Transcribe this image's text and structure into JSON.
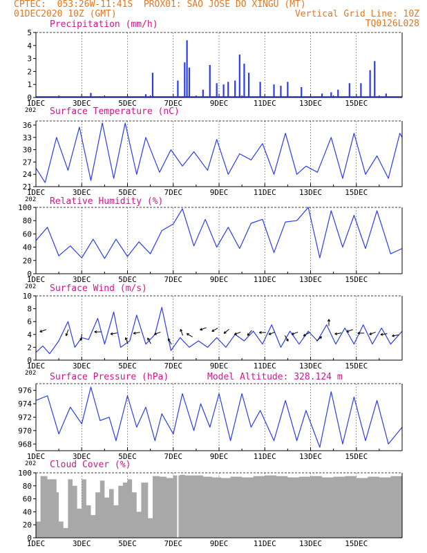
{
  "header": {
    "line1_left": "CPTEC:  053:26W-11:41S  PROX01: SAO JOSE DO XINGU (MT)",
    "line2_left": "01DEC2020 10Z (GMT)",
    "line2_right": "Vertical Grid Line: 10Z",
    "line3_right": "TQ0126L028"
  },
  "colors": {
    "header": "#e8761c",
    "title": "#d4148a",
    "line": "#2a3cf0",
    "bar": "#2a3cf0",
    "cloud": "#a8a8a8",
    "axis": "#000000"
  },
  "x_ticks": [
    "1DEC",
    "3DEC",
    "5DEC",
    "7DEC",
    "9DEC",
    "11DEC",
    "13DEC",
    "15DEC"
  ],
  "x_sublabel": "202",
  "chart_data": [
    {
      "type": "bar",
      "title": "Precipitation (mm/h)",
      "ylim": [
        0,
        5
      ],
      "yticks": [
        "0",
        "1",
        "2",
        "3",
        "4",
        "5"
      ],
      "series": [
        {
          "values": [
            [
              2.4,
              0.35
            ],
            [
              4.0,
              0.1
            ],
            [
              4.8,
              0.25
            ],
            [
              5.1,
              1.9
            ],
            [
              6.2,
              1.3
            ],
            [
              6.5,
              2.7
            ],
            [
              6.6,
              4.4
            ],
            [
              6.7,
              2.3
            ],
            [
              7.3,
              0.6
            ],
            [
              7.6,
              2.5
            ],
            [
              7.9,
              1.1
            ],
            [
              8.2,
              1.0
            ],
            [
              8.4,
              1.2
            ],
            [
              8.7,
              1.3
            ],
            [
              8.9,
              3.3
            ],
            [
              9.1,
              2.6
            ],
            [
              9.3,
              1.9
            ],
            [
              9.8,
              1.2
            ],
            [
              10.4,
              1.0
            ],
            [
              10.7,
              0.9
            ],
            [
              11.0,
              1.2
            ],
            [
              11.6,
              0.8
            ],
            [
              12.5,
              0.3
            ],
            [
              12.9,
              0.4
            ],
            [
              13.2,
              0.6
            ],
            [
              13.7,
              1.1
            ],
            [
              14.2,
              1.1
            ],
            [
              14.6,
              2.1
            ],
            [
              14.8,
              2.8
            ],
            [
              15.3,
              0.3
            ]
          ]
        }
      ]
    },
    {
      "type": "line",
      "title": "Surface Temperature (nC)",
      "ylim": [
        21,
        37
      ],
      "yticks": [
        "21",
        "24",
        "27",
        "30",
        "33",
        "36"
      ],
      "series": [
        {
          "values": [
            [
              0.0,
              25.5
            ],
            [
              0.4,
              22
            ],
            [
              0.9,
              33
            ],
            [
              1.4,
              25
            ],
            [
              1.9,
              35.5
            ],
            [
              2.4,
              22.5
            ],
            [
              2.9,
              36.5
            ],
            [
              3.4,
              23
            ],
            [
              3.9,
              36.5
            ],
            [
              4.4,
              24
            ],
            [
              4.8,
              33
            ],
            [
              5.4,
              24.5
            ],
            [
              5.9,
              30
            ],
            [
              6.4,
              26
            ],
            [
              6.9,
              29.5
            ],
            [
              7.5,
              25
            ],
            [
              7.9,
              32.5
            ],
            [
              8.4,
              24
            ],
            [
              8.9,
              29
            ],
            [
              9.4,
              27.5
            ],
            [
              9.9,
              31.5
            ],
            [
              10.4,
              24
            ],
            [
              10.9,
              34
            ],
            [
              11.4,
              24
            ],
            [
              11.8,
              26
            ],
            [
              12.3,
              24.5
            ],
            [
              12.9,
              33
            ],
            [
              13.4,
              23
            ],
            [
              13.9,
              34
            ],
            [
              14.4,
              24
            ],
            [
              14.9,
              28.5
            ],
            [
              15.4,
              23
            ],
            [
              15.9,
              34
            ],
            [
              16.0,
              33
            ]
          ]
        }
      ]
    },
    {
      "type": "line",
      "title": "Relative Humidity (%)",
      "ylim": [
        0,
        100
      ],
      "yticks": [
        "0",
        "20",
        "40",
        "60",
        "80",
        "100"
      ],
      "series": [
        {
          "values": [
            [
              0.0,
              50
            ],
            [
              0.5,
              70
            ],
            [
              1.0,
              27
            ],
            [
              1.5,
              42
            ],
            [
              2.0,
              24
            ],
            [
              2.5,
              52
            ],
            [
              3.0,
              23
            ],
            [
              3.5,
              52
            ],
            [
              4.0,
              26
            ],
            [
              4.5,
              48
            ],
            [
              5.0,
              30
            ],
            [
              5.5,
              65
            ],
            [
              6.0,
              75
            ],
            [
              6.4,
              98
            ],
            [
              6.9,
              42
            ],
            [
              7.4,
              82
            ],
            [
              7.9,
              40
            ],
            [
              8.4,
              70
            ],
            [
              8.9,
              38
            ],
            [
              9.4,
              76
            ],
            [
              9.9,
              82
            ],
            [
              10.4,
              32
            ],
            [
              10.9,
              78
            ],
            [
              11.4,
              80
            ],
            [
              11.9,
              100
            ],
            [
              12.4,
              24
            ],
            [
              12.9,
              95
            ],
            [
              13.4,
              40
            ],
            [
              13.9,
              88
            ],
            [
              14.4,
              38
            ],
            [
              14.9,
              95
            ],
            [
              15.5,
              30
            ],
            [
              16.0,
              38
            ]
          ]
        }
      ]
    },
    {
      "type": "line",
      "title": "Surface Wind (m/s)",
      "ylim": [
        0,
        10
      ],
      "yticks": [
        "0",
        "2",
        "4",
        "6",
        "8",
        "10"
      ],
      "series": [
        {
          "values": [
            [
              0.0,
              1.2
            ],
            [
              0.3,
              2.2
            ],
            [
              0.6,
              1.0
            ],
            [
              1.0,
              3.0
            ],
            [
              1.4,
              6.0
            ],
            [
              1.7,
              2.0
            ],
            [
              2.0,
              3.5
            ],
            [
              2.3,
              3.2
            ],
            [
              2.7,
              6.5
            ],
            [
              3.0,
              2.5
            ],
            [
              3.4,
              7.5
            ],
            [
              3.7,
              2.0
            ],
            [
              4.1,
              3.0
            ],
            [
              4.4,
              7.0
            ],
            [
              4.8,
              2.5
            ],
            [
              5.2,
              4.0
            ],
            [
              5.5,
              8.2
            ],
            [
              5.9,
              1.5
            ],
            [
              6.3,
              3.5
            ],
            [
              6.7,
              2.0
            ],
            [
              7.1,
              3.0
            ],
            [
              7.5,
              2.0
            ],
            [
              7.9,
              3.5
            ],
            [
              8.3,
              2.0
            ],
            [
              8.7,
              4.0
            ],
            [
              9.1,
              3.0
            ],
            [
              9.5,
              4.5
            ],
            [
              9.9,
              2.5
            ],
            [
              10.3,
              5.5
            ],
            [
              10.7,
              2.0
            ],
            [
              11.1,
              4.5
            ],
            [
              11.5,
              2.5
            ],
            [
              11.9,
              4.5
            ],
            [
              12.3,
              3.0
            ],
            [
              12.7,
              5.5
            ],
            [
              13.1,
              2.5
            ],
            [
              13.5,
              5.0
            ],
            [
              13.9,
              2.5
            ],
            [
              14.3,
              5.5
            ],
            [
              14.7,
              2.5
            ],
            [
              15.1,
              5.0
            ],
            [
              15.5,
              2.5
            ],
            [
              16.0,
              4.5
            ]
          ]
        }
      ],
      "arrows": [
        [
          0.4,
          4.7,
          200
        ],
        [
          1.4,
          4.6,
          250
        ],
        [
          2.0,
          3.9,
          260
        ],
        [
          2.8,
          4.4,
          180
        ],
        [
          3.5,
          4.2,
          190
        ],
        [
          4.0,
          2.7,
          110
        ],
        [
          4.5,
          4.3,
          190
        ],
        [
          5.0,
          2.7,
          120
        ],
        [
          5.4,
          4.3,
          200
        ],
        [
          5.9,
          2.6,
          120
        ],
        [
          6.4,
          4.0,
          110
        ],
        [
          6.8,
          3.7,
          150
        ],
        [
          7.4,
          5.0,
          200
        ],
        [
          7.9,
          4.9,
          210
        ],
        [
          8.4,
          4.7,
          220
        ],
        [
          8.9,
          4.3,
          200
        ],
        [
          9.4,
          4.5,
          230
        ],
        [
          10.0,
          4.3,
          180
        ],
        [
          10.4,
          4.3,
          200
        ],
        [
          10.9,
          3.7,
          300
        ],
        [
          11.4,
          4.3,
          200
        ],
        [
          11.9,
          4.2,
          210
        ],
        [
          12.3,
          3.1,
          40
        ],
        [
          12.8,
          5.5,
          90
        ],
        [
          13.3,
          4.2,
          190
        ],
        [
          13.8,
          4.7,
          200
        ],
        [
          14.3,
          4.2,
          180
        ],
        [
          14.8,
          4.3,
          200
        ],
        [
          15.3,
          4.1,
          190
        ],
        [
          15.8,
          3.9,
          190
        ]
      ]
    },
    {
      "type": "line",
      "title": "Surface Pressure (hPa)",
      "annotation": "Model Altitude: 328.124 m",
      "ylim": [
        967,
        977
      ],
      "yticks": [
        "968",
        "970",
        "972",
        "974",
        "976"
      ],
      "series": [
        {
          "values": [
            [
              0.0,
              974.5
            ],
            [
              0.5,
              975.2
            ],
            [
              1.0,
              969.5
            ],
            [
              1.5,
              973.5
            ],
            [
              2.0,
              971.0
            ],
            [
              2.4,
              976.5
            ],
            [
              2.8,
              971.5
            ],
            [
              3.2,
              972.0
            ],
            [
              3.5,
              968.5
            ],
            [
              4.0,
              975.2
            ],
            [
              4.4,
              970.5
            ],
            [
              4.8,
              973.5
            ],
            [
              5.2,
              968.5
            ],
            [
              5.5,
              972.5
            ],
            [
              6.0,
              969.5
            ],
            [
              6.4,
              975.5
            ],
            [
              6.9,
              970.0
            ],
            [
              7.2,
              974.0
            ],
            [
              7.6,
              970.5
            ],
            [
              8.0,
              975.5
            ],
            [
              8.5,
              968.5
            ],
            [
              9.0,
              975.5
            ],
            [
              9.4,
              970.5
            ],
            [
              9.8,
              973.0
            ],
            [
              10.4,
              968.5
            ],
            [
              10.9,
              974.5
            ],
            [
              11.4,
              968.5
            ],
            [
              11.8,
              973.0
            ],
            [
              12.4,
              967.5
            ],
            [
              12.9,
              975.8
            ],
            [
              13.4,
              968.0
            ],
            [
              13.9,
              975.0
            ],
            [
              14.4,
              968.5
            ],
            [
              14.9,
              974.5
            ],
            [
              15.4,
              968.0
            ],
            [
              16.0,
              970.5
            ]
          ]
        }
      ]
    },
    {
      "type": "bar",
      "title": "Cloud Cover (%)",
      "ylim": [
        0,
        100
      ],
      "yticks": [
        "0",
        "20",
        "40",
        "60",
        "80",
        "100"
      ],
      "series": [
        {
          "values": [
            [
              0.0,
              25
            ],
            [
              0.2,
              95
            ],
            [
              0.5,
              90
            ],
            [
              0.9,
              70
            ],
            [
              1.0,
              25
            ],
            [
              1.2,
              15
            ],
            [
              1.4,
              90
            ],
            [
              1.6,
              80
            ],
            [
              1.8,
              45
            ],
            [
              2.0,
              90
            ],
            [
              2.2,
              50
            ],
            [
              2.4,
              35
            ],
            [
              2.6,
              70
            ],
            [
              2.8,
              88
            ],
            [
              3.0,
              62
            ],
            [
              3.2,
              75
            ],
            [
              3.4,
              50
            ],
            [
              3.6,
              80
            ],
            [
              3.8,
              85
            ],
            [
              4.0,
              90
            ],
            [
              4.2,
              70
            ],
            [
              4.4,
              40
            ],
            [
              4.6,
              85
            ],
            [
              4.9,
              30
            ],
            [
              5.1,
              95
            ],
            [
              5.4,
              94
            ],
            [
              5.7,
              92
            ],
            [
              6.0,
              96
            ],
            [
              6.3,
              97
            ],
            [
              6.5,
              96
            ],
            [
              6.8,
              96
            ],
            [
              7.3,
              94
            ],
            [
              7.7,
              93
            ],
            [
              8.1,
              92
            ],
            [
              8.5,
              94
            ],
            [
              9.0,
              93
            ],
            [
              9.5,
              95
            ],
            [
              10.0,
              96
            ],
            [
              10.5,
              95
            ],
            [
              11.0,
              93
            ],
            [
              11.5,
              94
            ],
            [
              12.0,
              95
            ],
            [
              12.5,
              93
            ],
            [
              13.0,
              94
            ],
            [
              13.5,
              95
            ],
            [
              14.0,
              92
            ],
            [
              14.5,
              94
            ],
            [
              15.0,
              93
            ],
            [
              15.5,
              95
            ],
            [
              16.0,
              90
            ]
          ]
        }
      ]
    }
  ]
}
